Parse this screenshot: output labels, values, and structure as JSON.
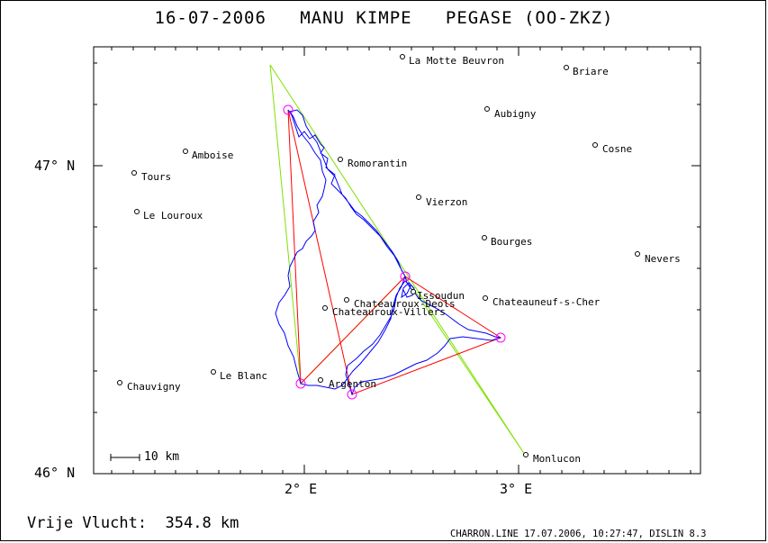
{
  "header": {
    "title": "16-07-2006   MANU KIMPE   PEGASE (OO-ZKZ)"
  },
  "axes": {
    "lat_labels": [
      "47° N",
      "46° N"
    ],
    "lon_labels": [
      "2° E",
      "3° E"
    ]
  },
  "scale_bar": {
    "label": "10 km"
  },
  "footer": {
    "distance": "Vrije Vlucht:  354.8 km",
    "info": "CHARRON.LINE 17.07.2006, 10:27:47, DISLIN 8.3"
  },
  "colors": {
    "track": "#0000ff",
    "task_red": "#ff0000",
    "task_green": "#80e000",
    "turnpoint": "#ff00ff"
  },
  "towns": [
    {
      "name": "La Motte Beuvron"
    },
    {
      "name": "Briare"
    },
    {
      "name": "Aubigny"
    },
    {
      "name": "Cosne"
    },
    {
      "name": "Amboise"
    },
    {
      "name": "Romorantin"
    },
    {
      "name": "Tours"
    },
    {
      "name": "Vierzon"
    },
    {
      "name": "Le Louroux"
    },
    {
      "name": "Bourges"
    },
    {
      "name": "Nevers"
    },
    {
      "name": "Issoudun"
    },
    {
      "name": "Chateauroux-Deols"
    },
    {
      "name": "Chateauneuf-s-Cher"
    },
    {
      "name": "Chateauroux-Villers"
    },
    {
      "name": "Le Blanc"
    },
    {
      "name": "Chauvigny"
    },
    {
      "name": "Argenton"
    },
    {
      "name": "Monlucon"
    }
  ]
}
